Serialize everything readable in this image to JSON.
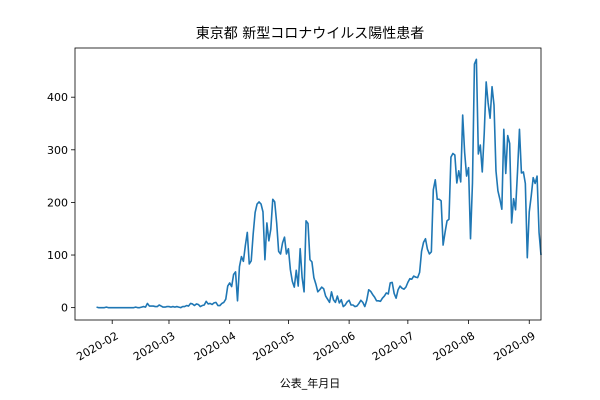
{
  "chart_data": {
    "type": "line",
    "title": "東京都 新型コロナウイルス陽性患者",
    "xlabel": "公表_年月日",
    "ylabel": "",
    "x_type": "date",
    "xlim": [
      "2020-01-13",
      "2020-09-07"
    ],
    "ylim": [
      -23.5,
      493.5
    ],
    "x_ticks": [
      "2020-02-01",
      "2020-03-01",
      "2020-04-01",
      "2020-05-01",
      "2020-06-01",
      "2020-07-01",
      "2020-08-01",
      "2020-09-01"
    ],
    "x_tick_labels": [
      "2020-02",
      "2020-03",
      "2020-04",
      "2020-05",
      "2020-06",
      "2020-07",
      "2020-08",
      "2020-09"
    ],
    "y_ticks": [
      0,
      100,
      200,
      300,
      400
    ],
    "y_tick_labels": [
      "0",
      "100",
      "200",
      "300",
      "400"
    ],
    "grid": false,
    "legend": "none",
    "line_color": "#1f77b4",
    "series": [
      {
        "x_start": "2020-01-24",
        "values": [
          1,
          0,
          0,
          0,
          0,
          1,
          0,
          0,
          0,
          0,
          0,
          0,
          0,
          0,
          0,
          0,
          0,
          0,
          0,
          0,
          1,
          0,
          0,
          1,
          2,
          1,
          8,
          3,
          3,
          3,
          2,
          2,
          5,
          3,
          1,
          1,
          2,
          2,
          1,
          2,
          1,
          2,
          1,
          0,
          2,
          2,
          4,
          3,
          8,
          7,
          4,
          7,
          6,
          2,
          4,
          5,
          12,
          7,
          8,
          6,
          9,
          10,
          4,
          4,
          8,
          10,
          16,
          41,
          47,
          40,
          63,
          68,
          13,
          78,
          97,
          88,
          118,
          143,
          83,
          89,
          140,
          181,
          197,
          201,
          197,
          182,
          91,
          161,
          127,
          149,
          206,
          201,
          161,
          107,
          102,
          123,
          134,
          102,
          112,
          72,
          50,
          39,
          71,
          41,
          112,
          57,
          30,
          165,
          160,
          91,
          87,
          57,
          45,
          30,
          34,
          39,
          36,
          22,
          16,
          10,
          30,
          15,
          10,
          22,
          9,
          15,
          2,
          5,
          11,
          14,
          5,
          5,
          2,
          3,
          8,
          14,
          10,
          2,
          14,
          34,
          31,
          25,
          20,
          13,
          13,
          12,
          18,
          22,
          28,
          26,
          47,
          48,
          27,
          18,
          34,
          41,
          37,
          35,
          39,
          48,
          55,
          54,
          60,
          58,
          57,
          67,
          107,
          124,
          131,
          111,
          102,
          106,
          224,
          243,
          206,
          206,
          203,
          119,
          143,
          165,
          168,
          286,
          293,
          290,
          237,
          260,
          239,
          366,
          295,
          250,
          266,
          131,
          237,
          463,
          472,
          292,
          309,
          258,
          331,
          429,
          389,
          360,
          420,
          385,
          260,
          222,
          206,
          187,
          339,
          255,
          327,
          312,
          161,
          207,
          186,
          258,
          339,
          256,
          258,
          236,
          95,
          182,
          212,
          247,
          236,
          250,
          143,
          100
        ]
      }
    ]
  }
}
